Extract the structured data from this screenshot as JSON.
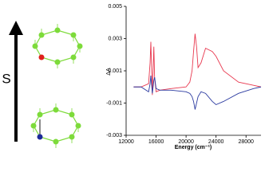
{
  "diagram": {
    "spin_label": "S"
  },
  "chart_data": {
    "type": "line",
    "xlabel": "Energy (cm⁻¹)",
    "ylabel": "ΔA",
    "x": [
      13000,
      14000,
      15000,
      15200,
      15300,
      15500,
      15700,
      15800,
      16000,
      16500,
      18000,
      20000,
      20500,
      20800,
      21000,
      21200,
      21400,
      21600,
      22000,
      22600,
      23500,
      24000,
      25000,
      27000,
      29000,
      30000
    ],
    "series": [
      {
        "color": "#e8384f",
        "values": [
          0,
          0,
          0.0002,
          0.0015,
          0.0028,
          -0.0005,
          0.0025,
          0.0006,
          -0.0003,
          -0.0002,
          -0.0001,
          0,
          0.0003,
          0.001,
          0.0022,
          0.0033,
          0.0025,
          0.0012,
          0.0015,
          0.0024,
          0.0022,
          0.0019,
          0.001,
          0.0003,
          0.0001,
          0
        ]
      },
      {
        "color": "#2b3aa0",
        "values": [
          0,
          0,
          -0.0003,
          0.0002,
          0.0007,
          -0.0004,
          0.0004,
          0.0006,
          -0.0001,
          -0.0002,
          -0.0002,
          -0.0003,
          -0.0004,
          -0.0006,
          -0.0009,
          -0.0014,
          -0.001,
          -0.0006,
          -0.0003,
          -0.0004,
          -0.0009,
          -0.0011,
          -0.0009,
          -0.0004,
          -0.0001,
          0
        ]
      }
    ],
    "xlim": [
      12000,
      30000
    ],
    "xticks": [
      12000,
      16000,
      20000,
      24000,
      28000
    ],
    "ylim": [
      -0.003,
      0.005
    ],
    "yticks": [
      0.005,
      0.003,
      0.001,
      -0.001,
      -0.003
    ]
  }
}
